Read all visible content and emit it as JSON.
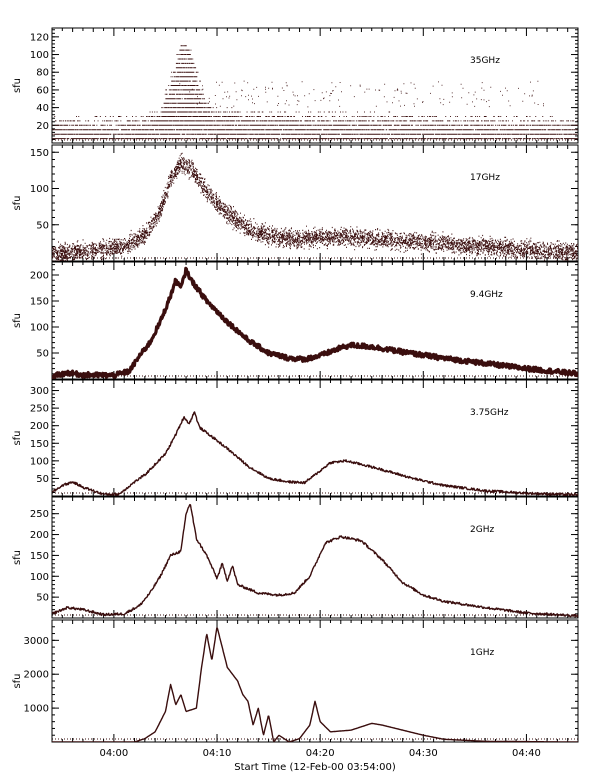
{
  "chart_data": {
    "type": "line",
    "colors": {
      "trace": "#3a0e0e",
      "axes": "#000000",
      "background": "#ffffff"
    },
    "x_axis": {
      "label": "Start Time (12-Feb-00 03:54:00)",
      "range_minutes": [
        0,
        51
      ],
      "ticks": [
        {
          "minute": 6,
          "label": "04:00"
        },
        {
          "minute": 16,
          "label": "04:10"
        },
        {
          "minute": 26,
          "label": "04:20"
        },
        {
          "minute": 36,
          "label": "04:30"
        },
        {
          "minute": 46,
          "label": "04:40"
        }
      ]
    },
    "panels": [
      {
        "id": "p35",
        "frequency_label": "35GHz",
        "ylabel": "sfu",
        "ylim": [
          0,
          130
        ],
        "yticks": [
          20,
          40,
          60,
          80,
          100,
          120
        ],
        "style": "quantized",
        "noise": 1,
        "points": [
          [
            0,
            8
          ],
          [
            6,
            8
          ],
          [
            9,
            10
          ],
          [
            10.5,
            20
          ],
          [
            11.5,
            55
          ],
          [
            12.5,
            95
          ],
          [
            13,
            108
          ],
          [
            13.7,
            75
          ],
          [
            14.5,
            40
          ],
          [
            15.5,
            20
          ],
          [
            20,
            15
          ],
          [
            30,
            12
          ],
          [
            40,
            10
          ],
          [
            51,
            8
          ]
        ]
      },
      {
        "id": "p17",
        "frequency_label": "17GHz",
        "ylabel": "sfu",
        "ylim": [
          0,
          160
        ],
        "yticks": [
          50,
          100,
          150
        ],
        "style": "scatter",
        "noise": 12,
        "points": [
          [
            0,
            10
          ],
          [
            4,
            14
          ],
          [
            7,
            20
          ],
          [
            9,
            35
          ],
          [
            10.5,
            70
          ],
          [
            11.5,
            115
          ],
          [
            12.5,
            135
          ],
          [
            13.5,
            125
          ],
          [
            15,
            95
          ],
          [
            17,
            65
          ],
          [
            19,
            45
          ],
          [
            21,
            35
          ],
          [
            24,
            30
          ],
          [
            27,
            33
          ],
          [
            30,
            32
          ],
          [
            34,
            28
          ],
          [
            38,
            24
          ],
          [
            42,
            20
          ],
          [
            47,
            15
          ],
          [
            51,
            12
          ]
        ]
      },
      {
        "id": "p9",
        "frequency_label": "9.4GHz",
        "ylabel": "sfu",
        "ylim": [
          0,
          225
        ],
        "yticks": [
          50,
          100,
          150,
          200
        ],
        "style": "band",
        "noise": 4,
        "points": [
          [
            0,
            5
          ],
          [
            1.5,
            12
          ],
          [
            3,
            8
          ],
          [
            6,
            7
          ],
          [
            7.5,
            15
          ],
          [
            8.5,
            45
          ],
          [
            9.5,
            70
          ],
          [
            10.5,
            110
          ],
          [
            11.5,
            160
          ],
          [
            12,
            190
          ],
          [
            12.5,
            175
          ],
          [
            13,
            210
          ],
          [
            13.5,
            190
          ],
          [
            15,
            150
          ],
          [
            17,
            110
          ],
          [
            19,
            75
          ],
          [
            21,
            50
          ],
          [
            23,
            40
          ],
          [
            24.5,
            38
          ],
          [
            26,
            45
          ],
          [
            28,
            60
          ],
          [
            29,
            65
          ],
          [
            31,
            62
          ],
          [
            34,
            52
          ],
          [
            38,
            40
          ],
          [
            42,
            30
          ],
          [
            46,
            20
          ],
          [
            51,
            10
          ]
        ]
      },
      {
        "id": "p375",
        "frequency_label": "3.75GHz",
        "ylabel": "sfu",
        "ylim": [
          0,
          330
        ],
        "yticks": [
          50,
          100,
          150,
          200,
          250,
          300
        ],
        "style": "line",
        "noise": 2,
        "points": [
          [
            0,
            10
          ],
          [
            1,
            30
          ],
          [
            2,
            40
          ],
          [
            3,
            25
          ],
          [
            5,
            5
          ],
          [
            6.5,
            5
          ],
          [
            8,
            40
          ],
          [
            9,
            60
          ],
          [
            10,
            90
          ],
          [
            11,
            120
          ],
          [
            12,
            175
          ],
          [
            12.8,
            225
          ],
          [
            13.3,
            205
          ],
          [
            13.8,
            240
          ],
          [
            14.3,
            195
          ],
          [
            15,
            180
          ],
          [
            17,
            135
          ],
          [
            19,
            85
          ],
          [
            21,
            50
          ],
          [
            23,
            40
          ],
          [
            24.5,
            38
          ],
          [
            25.5,
            60
          ],
          [
            27,
            95
          ],
          [
            28.5,
            100
          ],
          [
            30,
            90
          ],
          [
            32,
            75
          ],
          [
            35,
            50
          ],
          [
            38,
            30
          ],
          [
            42,
            15
          ],
          [
            46,
            8
          ],
          [
            51,
            3
          ]
        ]
      },
      {
        "id": "p2",
        "frequency_label": "2GHz",
        "ylabel": "sfu",
        "ylim": [
          0,
          290
        ],
        "yticks": [
          50,
          100,
          150,
          200,
          250
        ],
        "style": "line",
        "noise": 2,
        "points": [
          [
            0,
            10
          ],
          [
            1.5,
            25
          ],
          [
            3,
            20
          ],
          [
            5,
            8
          ],
          [
            7,
            10
          ],
          [
            8.5,
            30
          ],
          [
            9.5,
            60
          ],
          [
            10.5,
            100
          ],
          [
            11.5,
            150
          ],
          [
            12.5,
            160
          ],
          [
            13,
            250
          ],
          [
            13.4,
            275
          ],
          [
            14,
            190
          ],
          [
            15,
            150
          ],
          [
            16,
            95
          ],
          [
            16.5,
            130
          ],
          [
            17,
            90
          ],
          [
            17.5,
            125
          ],
          [
            18,
            80
          ],
          [
            20,
            60
          ],
          [
            22,
            55
          ],
          [
            23.5,
            60
          ],
          [
            25,
            100
          ],
          [
            26.5,
            180
          ],
          [
            28,
            195
          ],
          [
            30,
            185
          ],
          [
            32,
            140
          ],
          [
            34,
            85
          ],
          [
            36,
            55
          ],
          [
            38,
            40
          ],
          [
            42,
            25
          ],
          [
            46,
            12
          ],
          [
            51,
            5
          ]
        ]
      },
      {
        "id": "p1",
        "frequency_label": "1GHz",
        "ylabel": "sfu",
        "ylim": [
          0,
          3600
        ],
        "yticks": [
          1000,
          2000,
          3000
        ],
        "style": "line",
        "noise": 0,
        "points": [
          [
            0,
            0
          ],
          [
            8,
            0
          ],
          [
            9,
            100
          ],
          [
            10,
            300
          ],
          [
            11,
            900
          ],
          [
            11.5,
            1700
          ],
          [
            12,
            1100
          ],
          [
            12.5,
            1400
          ],
          [
            13,
            900
          ],
          [
            14,
            1000
          ],
          [
            14.5,
            2200
          ],
          [
            15,
            3200
          ],
          [
            15.5,
            2400
          ],
          [
            16,
            3400
          ],
          [
            16.5,
            2800
          ],
          [
            17,
            2200
          ],
          [
            18,
            1800
          ],
          [
            18.5,
            1400
          ],
          [
            19,
            1200
          ],
          [
            19.5,
            500
          ],
          [
            20,
            1000
          ],
          [
            20.5,
            200
          ],
          [
            21,
            800
          ],
          [
            21.5,
            0
          ],
          [
            22,
            200
          ],
          [
            23,
            0
          ],
          [
            24,
            100
          ],
          [
            25,
            500
          ],
          [
            25.5,
            1200
          ],
          [
            26,
            600
          ],
          [
            27,
            300
          ],
          [
            29,
            350
          ],
          [
            30,
            450
          ],
          [
            31,
            550
          ],
          [
            32,
            500
          ],
          [
            34,
            350
          ],
          [
            36,
            200
          ],
          [
            38,
            80
          ],
          [
            42,
            20
          ],
          [
            51,
            0
          ]
        ]
      }
    ]
  }
}
